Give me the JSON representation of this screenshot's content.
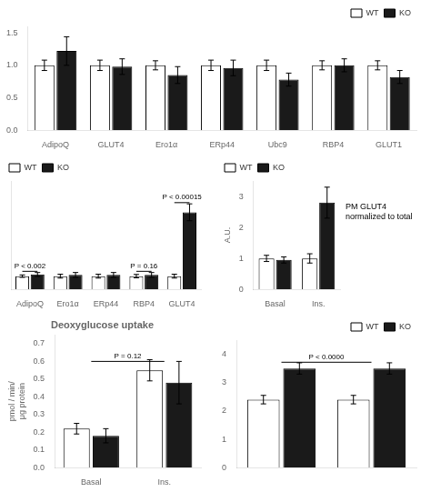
{
  "chart_data": [
    {
      "type": "bar",
      "categories": [
        "AdipoQ",
        "GLUT4",
        "Ero1α",
        "ERp44",
        "Ubc9",
        "RBP4",
        "GLUT1"
      ],
      "series": [
        {
          "name": "WT",
          "color": "#ffffff",
          "values": [
            1.0,
            1.0,
            1.0,
            1.0,
            1.0,
            1.0,
            1.0
          ],
          "errors": [
            0.08,
            0.08,
            0.07,
            0.08,
            0.08,
            0.07,
            0.07
          ]
        },
        {
          "name": "KO",
          "color": "#1a1a1a",
          "values": [
            1.22,
            0.98,
            0.85,
            0.96,
            0.78,
            1.0,
            0.82
          ],
          "errors": [
            0.22,
            0.12,
            0.13,
            0.12,
            0.1,
            0.1,
            0.1
          ]
        }
      ],
      "ylim": [
        0,
        1.6
      ],
      "yticks": [
        {
          "value": 0,
          "label": "0.0"
        },
        0.5,
        {
          "value": 1.0,
          "label": "1.0"
        },
        1.5
      ],
      "grid": false,
      "legend": "upper right"
    },
    {
      "type": "bar",
      "categories": [
        "AdipoQ",
        "Ero1α",
        "ERp44",
        "RBP4",
        "GLUT4"
      ],
      "series": [
        {
          "name": "WT",
          "color": "#ffffff",
          "values": [
            0.55,
            0.55,
            0.55,
            0.55,
            0.55
          ],
          "errors": [
            0.05,
            0.08,
            0.08,
            0.07,
            0.08
          ]
        },
        {
          "name": "KO",
          "color": "#1a1a1a",
          "values": [
            0.62,
            0.6,
            0.6,
            0.6,
            3.2
          ],
          "errors": [
            0.08,
            0.1,
            0.1,
            0.1,
            0.35
          ]
        }
      ],
      "ylim": [
        0,
        4.5
      ],
      "tick_labels": "x",
      "grid": false,
      "legend": "upper left",
      "annotations": [
        {
          "text": "P < 0.002",
          "category": "AdipoQ",
          "y": 0.75,
          "bracket": true
        },
        {
          "text": "P = 0.16",
          "category": "RBP4",
          "y": 0.75,
          "bracket": true
        },
        {
          "text": "P < 0.00015",
          "category": "GLUT4",
          "y": 3.6,
          "bracket": true
        }
      ]
    },
    {
      "type": "bar",
      "categories": [
        "Basal",
        "Ins."
      ],
      "series": [
        {
          "name": "WT",
          "color": "#ffffff",
          "values": [
            1.0,
            1.0
          ],
          "errors": [
            0.1,
            0.15
          ]
        },
        {
          "name": "KO",
          "color": "#1a1a1a",
          "values": [
            0.95,
            2.8
          ],
          "errors": [
            0.1,
            0.5
          ]
        }
      ],
      "ylim": [
        0,
        3.5
      ],
      "yticks": [
        0,
        1,
        2,
        3
      ],
      "ylabel": "A.U.",
      "grid": false,
      "legend": "upper left",
      "annotations": [
        {
          "text": "PM GLUT4\nnormalized to total",
          "y": 2.5
        }
      ]
    },
    {
      "type": "bar",
      "title": "Deoxyglucose uptake",
      "categories": [
        "Basal",
        "Ins."
      ],
      "series": [
        {
          "name": "WT",
          "color": "#ffffff",
          "values": [
            0.22,
            0.55
          ],
          "errors": [
            0.03,
            0.06
          ]
        },
        {
          "name": "KO",
          "color": "#1a1a1a",
          "values": [
            0.18,
            0.48
          ],
          "errors": [
            0.04,
            0.12
          ]
        }
      ],
      "ylim": [
        0,
        0.75
      ],
      "yticks": [
        {
          "value": 0,
          "label": "0.0"
        },
        0.1,
        0.2,
        0.3,
        0.4,
        0.5,
        0.6,
        0.7
      ],
      "ylabel": "pmol / min/\nμg protein",
      "grid": false,
      "annotations": [
        {
          "text": "P = 0.12",
          "y": 0.6,
          "bracket": true
        }
      ]
    },
    {
      "type": "bar",
      "categories": [
        null,
        null
      ],
      "series": [
        {
          "name": "WT",
          "color": "#ffffff",
          "values": [
            2.4,
            2.4
          ],
          "errors": [
            0.15,
            0.15
          ]
        },
        {
          "name": "KO",
          "color": "#1a1a1a",
          "values": [
            3.5,
            3.5
          ],
          "errors": [
            0.2,
            0.2
          ]
        }
      ],
      "ylim": [
        0,
        4.5
      ],
      "yticks": [
        0,
        1,
        2,
        3,
        4
      ],
      "grid": false,
      "legend": "upper right",
      "annotations": [
        {
          "text": "P < 0.0000",
          "y": 3.72,
          "bracket": true
        }
      ]
    }
  ]
}
